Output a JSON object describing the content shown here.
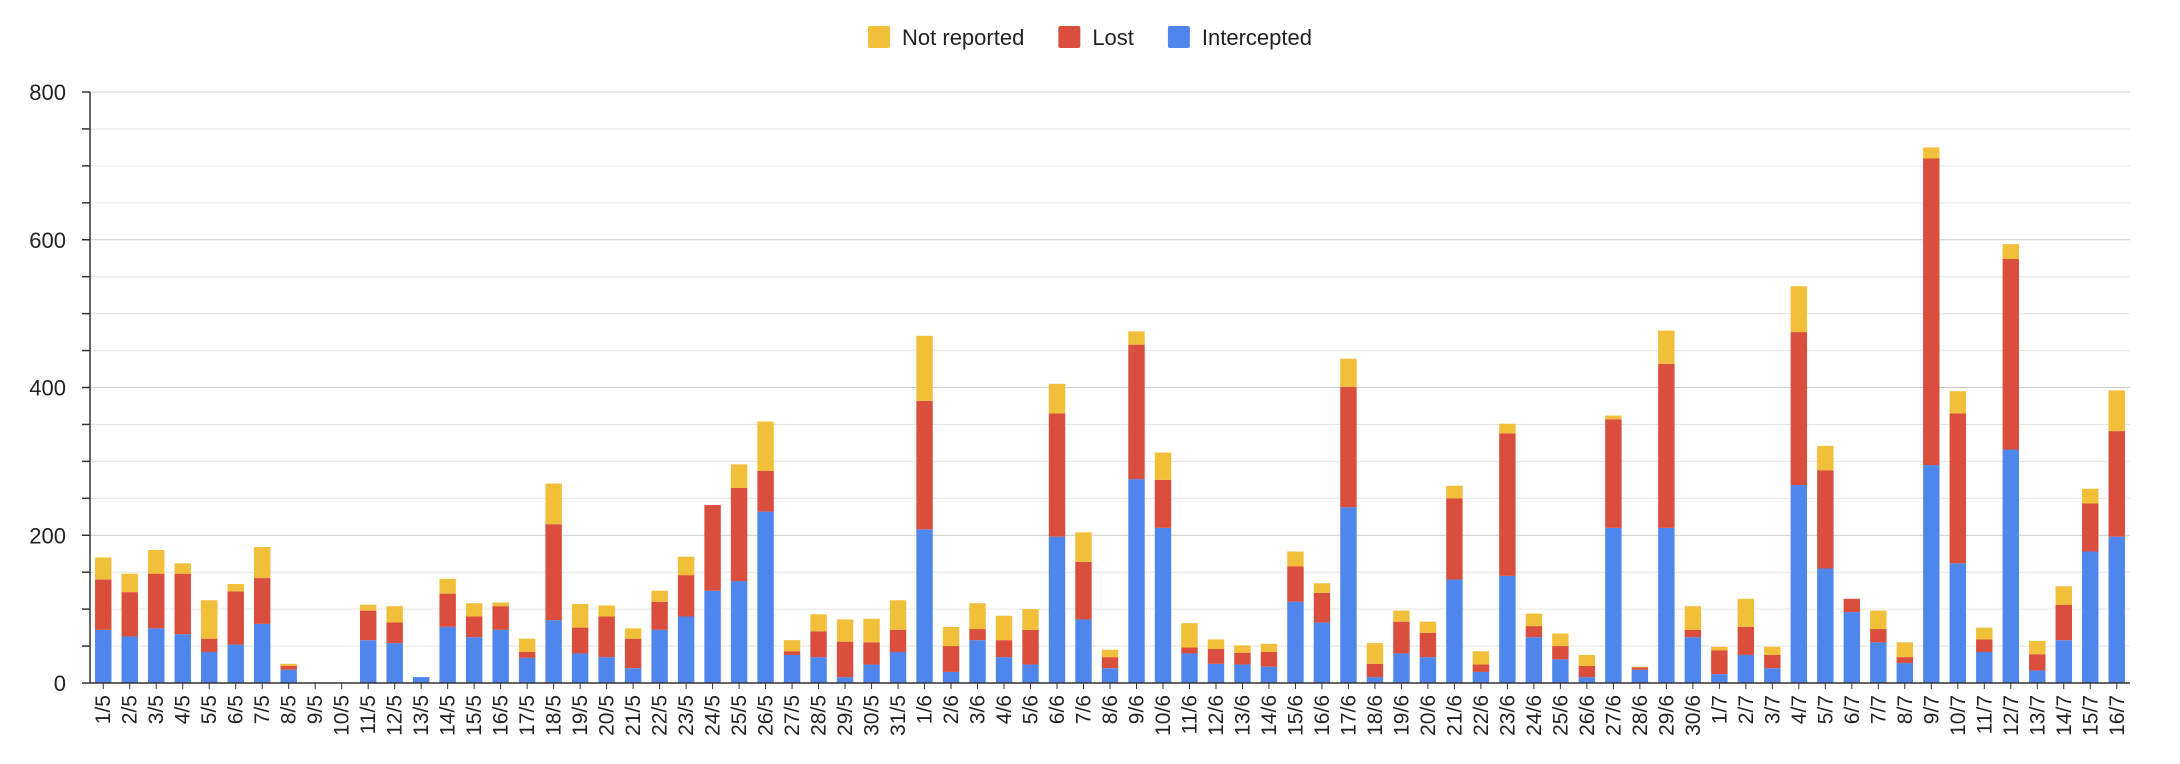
{
  "chart_data": {
    "type": "bar",
    "stacked": true,
    "title": "",
    "xlabel": "",
    "ylabel": "",
    "ylim": [
      0,
      800
    ],
    "yticks": [
      0,
      200,
      400,
      600,
      800
    ],
    "legend_position": "top-center",
    "legend": [
      "Not reported",
      "Lost",
      "Intercepted"
    ],
    "colors": {
      "Intercepted": "#4f86ec",
      "Lost": "#d94e3d",
      "Not reported": "#f2bf3b"
    },
    "categories": [
      "1/5",
      "2/5",
      "3/5",
      "4/5",
      "5/5",
      "6/5",
      "7/5",
      "8/5",
      "9/5",
      "10/5",
      "11/5",
      "12/5",
      "13/5",
      "14/5",
      "15/5",
      "16/5",
      "17/5",
      "18/5",
      "19/5",
      "20/5",
      "21/5",
      "22/5",
      "23/5",
      "24/5",
      "25/5",
      "26/5",
      "27/5",
      "28/5",
      "29/5",
      "30/5",
      "31/5",
      "1/6",
      "2/6",
      "3/6",
      "4/6",
      "5/6",
      "6/6",
      "7/6",
      "8/6",
      "9/6",
      "10/6",
      "11/6",
      "12/6",
      "13/6",
      "14/6",
      "15/6",
      "16/6",
      "17/6",
      "18/6",
      "19/6",
      "20/6",
      "21/6",
      "22/6",
      "23/6",
      "24/6",
      "25/6",
      "26/6",
      "27/6",
      "28/6",
      "29/6",
      "30/6",
      "1/7",
      "2/7",
      "3/7",
      "4/7",
      "5/7",
      "6/7",
      "7/7",
      "8/7",
      "9/7",
      "10/7",
      "11/7",
      "12/7",
      "13/7",
      "14/7",
      "15/7",
      "16/7"
    ],
    "series": [
      {
        "name": "Intercepted",
        "values": [
          72,
          63,
          74,
          66,
          42,
          52,
          80,
          18,
          0,
          0,
          58,
          54,
          8,
          76,
          62,
          72,
          34,
          85,
          40,
          35,
          20,
          72,
          90,
          125,
          138,
          232,
          38,
          35,
          8,
          25,
          42,
          208,
          15,
          58,
          35,
          25,
          198,
          86,
          20,
          276,
          210,
          40,
          26,
          25,
          22,
          110,
          82,
          238,
          8,
          40,
          35,
          140,
          15,
          145,
          62,
          32,
          8,
          210,
          18,
          210,
          62,
          12,
          38,
          20,
          268,
          155,
          96,
          55,
          27,
          295,
          162,
          42,
          316,
          17,
          58,
          178,
          198
        ]
      },
      {
        "name": "Lost",
        "values": [
          68,
          60,
          74,
          82,
          18,
          72,
          62,
          5,
          0,
          0,
          40,
          28,
          0,
          45,
          28,
          32,
          8,
          130,
          35,
          55,
          40,
          38,
          56,
          116,
          126,
          55,
          5,
          35,
          48,
          30,
          30,
          174,
          35,
          15,
          23,
          47,
          167,
          78,
          15,
          182,
          65,
          8,
          20,
          16,
          20,
          48,
          40,
          163,
          18,
          43,
          33,
          110,
          10,
          193,
          15,
          18,
          15,
          147,
          3,
          222,
          10,
          32,
          38,
          18,
          207,
          133,
          18,
          18,
          8,
          415,
          203,
          17,
          258,
          22,
          48,
          65,
          143
        ]
      },
      {
        "name": "Not reported",
        "values": [
          30,
          25,
          32,
          14,
          52,
          10,
          42,
          3,
          0,
          0,
          8,
          22,
          0,
          20,
          18,
          5,
          18,
          55,
          32,
          15,
          14,
          15,
          25,
          0,
          32,
          67,
          15,
          23,
          30,
          32,
          40,
          88,
          26,
          35,
          33,
          28,
          40,
          40,
          10,
          18,
          37,
          33,
          13,
          10,
          11,
          20,
          13,
          38,
          28,
          15,
          15,
          17,
          18,
          13,
          17,
          17,
          15,
          5,
          1,
          45,
          32,
          5,
          38,
          11,
          62,
          33,
          0,
          25,
          20,
          15,
          30,
          16,
          20,
          18,
          25,
          20,
          55
        ]
      }
    ]
  }
}
